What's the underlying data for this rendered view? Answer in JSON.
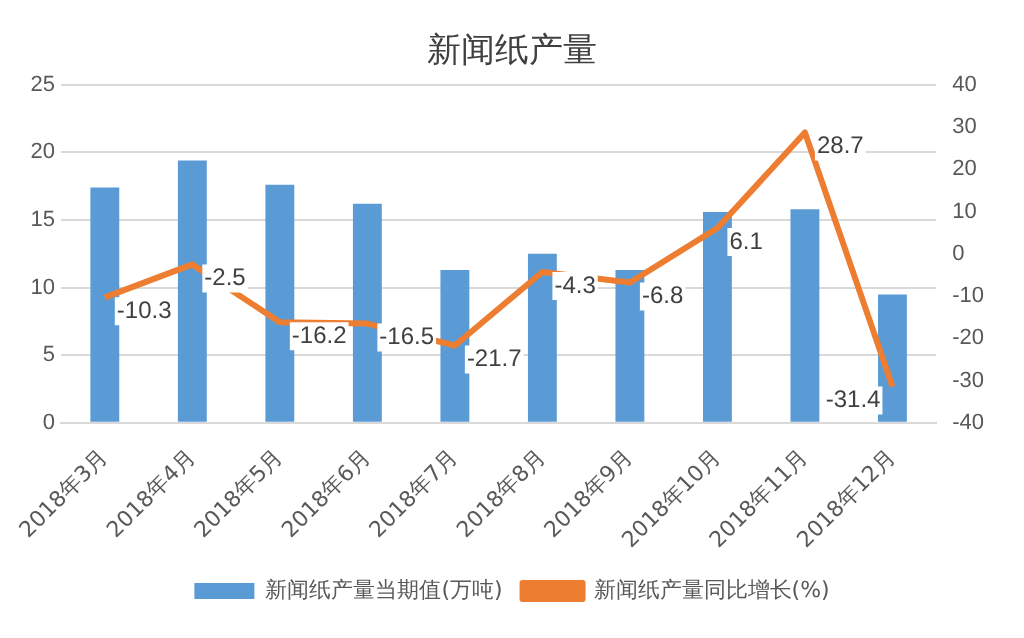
{
  "chart_data": {
    "type": "bar",
    "title": "新闻纸产量",
    "categories": [
      "2018年3月",
      "2018年4月",
      "2018年5月",
      "2018年6月",
      "2018年7月",
      "2018年8月",
      "2018年9月",
      "2018年10月",
      "2018年11月",
      "2018年12月"
    ],
    "series": [
      {
        "name": "新闻纸产量当期值(万吨)",
        "color": "#5b9bd5",
        "values": [
          17.4,
          19.4,
          17.6,
          16.2,
          11.3,
          12.5,
          11.3,
          15.6,
          15.8,
          9.5
        ]
      },
      {
        "name": "新闻纸产量同比增长(%)",
        "type": "line",
        "axis": "y2",
        "color": "#ed7d31",
        "values": [
          -10.3,
          -2.5,
          -16.2,
          -16.5,
          -21.7,
          -4.3,
          -6.8,
          6.1,
          28.7,
          -31.4
        ],
        "value_labels": [
          "-10.3",
          "-2.5",
          "-16.2",
          "-16.5",
          "-21.7",
          "-4.3",
          "-6.8",
          "6.1",
          "28.7",
          "-31.4"
        ]
      }
    ],
    "ylim": [
      0,
      25
    ],
    "yticks": [
      0,
      5,
      10,
      15,
      20,
      25
    ],
    "y2lim": [
      -40,
      40
    ],
    "y2ticks": [
      -40,
      -30,
      -20,
      -10,
      0,
      10,
      20,
      30,
      40
    ],
    "grid": "y",
    "legend": "bottom",
    "marker": "none"
  }
}
